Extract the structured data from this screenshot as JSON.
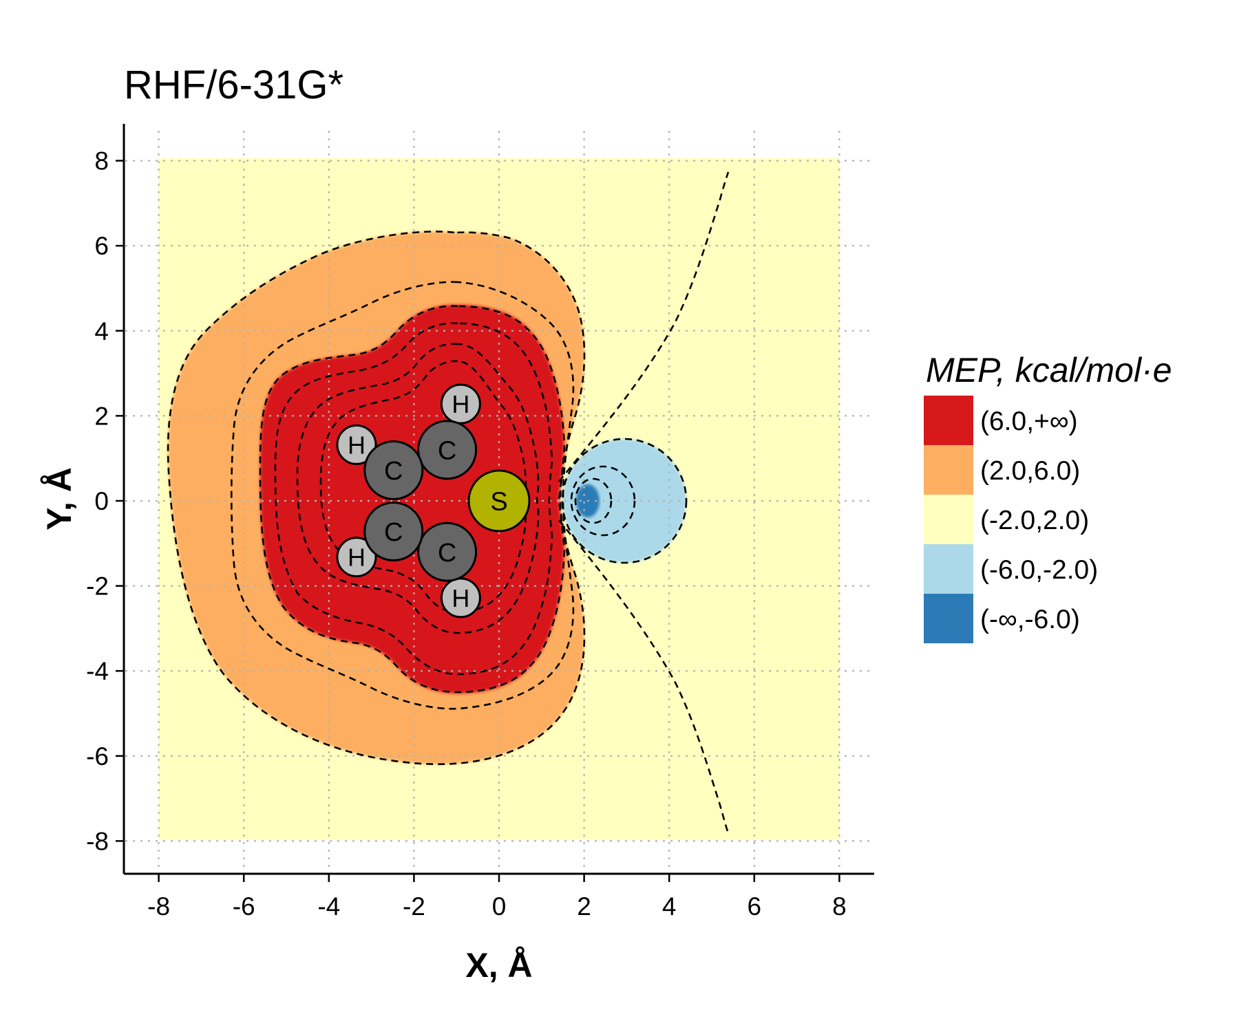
{
  "chart_data": {
    "type": "heatmap",
    "title": "RHF/6-31G*",
    "xlabel": "X, Å",
    "ylabel": "Y, Å",
    "xlim": [
      -8.8,
      8.8
    ],
    "ylim": [
      -8.8,
      8.8
    ],
    "data_range": [
      -8,
      8
    ],
    "x_ticks": [
      -8,
      -6,
      -4,
      -2,
      0,
      2,
      4,
      6,
      8
    ],
    "y_ticks": [
      -8,
      -6,
      -4,
      -2,
      0,
      2,
      4,
      6,
      8
    ],
    "x_tick_labels": [
      "-8",
      "-6",
      "-4",
      "-2",
      "0",
      "2",
      "4",
      "6",
      "8"
    ],
    "y_tick_labels": [
      "-8",
      "-6",
      "-4",
      "-2",
      "0",
      "2",
      "4",
      "6",
      "8"
    ],
    "grid": true,
    "legend": {
      "title": "MEP, kcal/mol·e",
      "position": "right",
      "entries": [
        {
          "label": "(6.0,+∞)",
          "color": "#d7191c"
        },
        {
          "label": "(2.0,6.0)",
          "color": "#fdae61"
        },
        {
          "label": "(-2.0,2.0)",
          "color": "#ffffbf"
        },
        {
          "label": "(-6.0,-2.0)",
          "color": "#abd9e9"
        },
        {
          "label": "(-∞,-6.0)",
          "color": "#2c7bb6"
        }
      ]
    },
    "atoms": [
      {
        "element": "S",
        "x": 0.0,
        "y": 0.0,
        "color": "#b2b200"
      },
      {
        "element": "C",
        "x": -1.22,
        "y": 1.2,
        "color": "#666666"
      },
      {
        "element": "C",
        "x": -1.22,
        "y": -1.2,
        "color": "#666666"
      },
      {
        "element": "C",
        "x": -2.48,
        "y": 0.72,
        "color": "#666666"
      },
      {
        "element": "C",
        "x": -2.48,
        "y": -0.72,
        "color": "#666666"
      },
      {
        "element": "H",
        "x": -0.9,
        "y": 2.28,
        "color": "#bfbfbf"
      },
      {
        "element": "H",
        "x": -0.9,
        "y": -2.28,
        "color": "#bfbfbf"
      },
      {
        "element": "H",
        "x": -3.35,
        "y": 1.32,
        "color": "#bfbfbf"
      },
      {
        "element": "H",
        "x": -3.35,
        "y": -1.32,
        "color": "#bfbfbf"
      }
    ]
  }
}
